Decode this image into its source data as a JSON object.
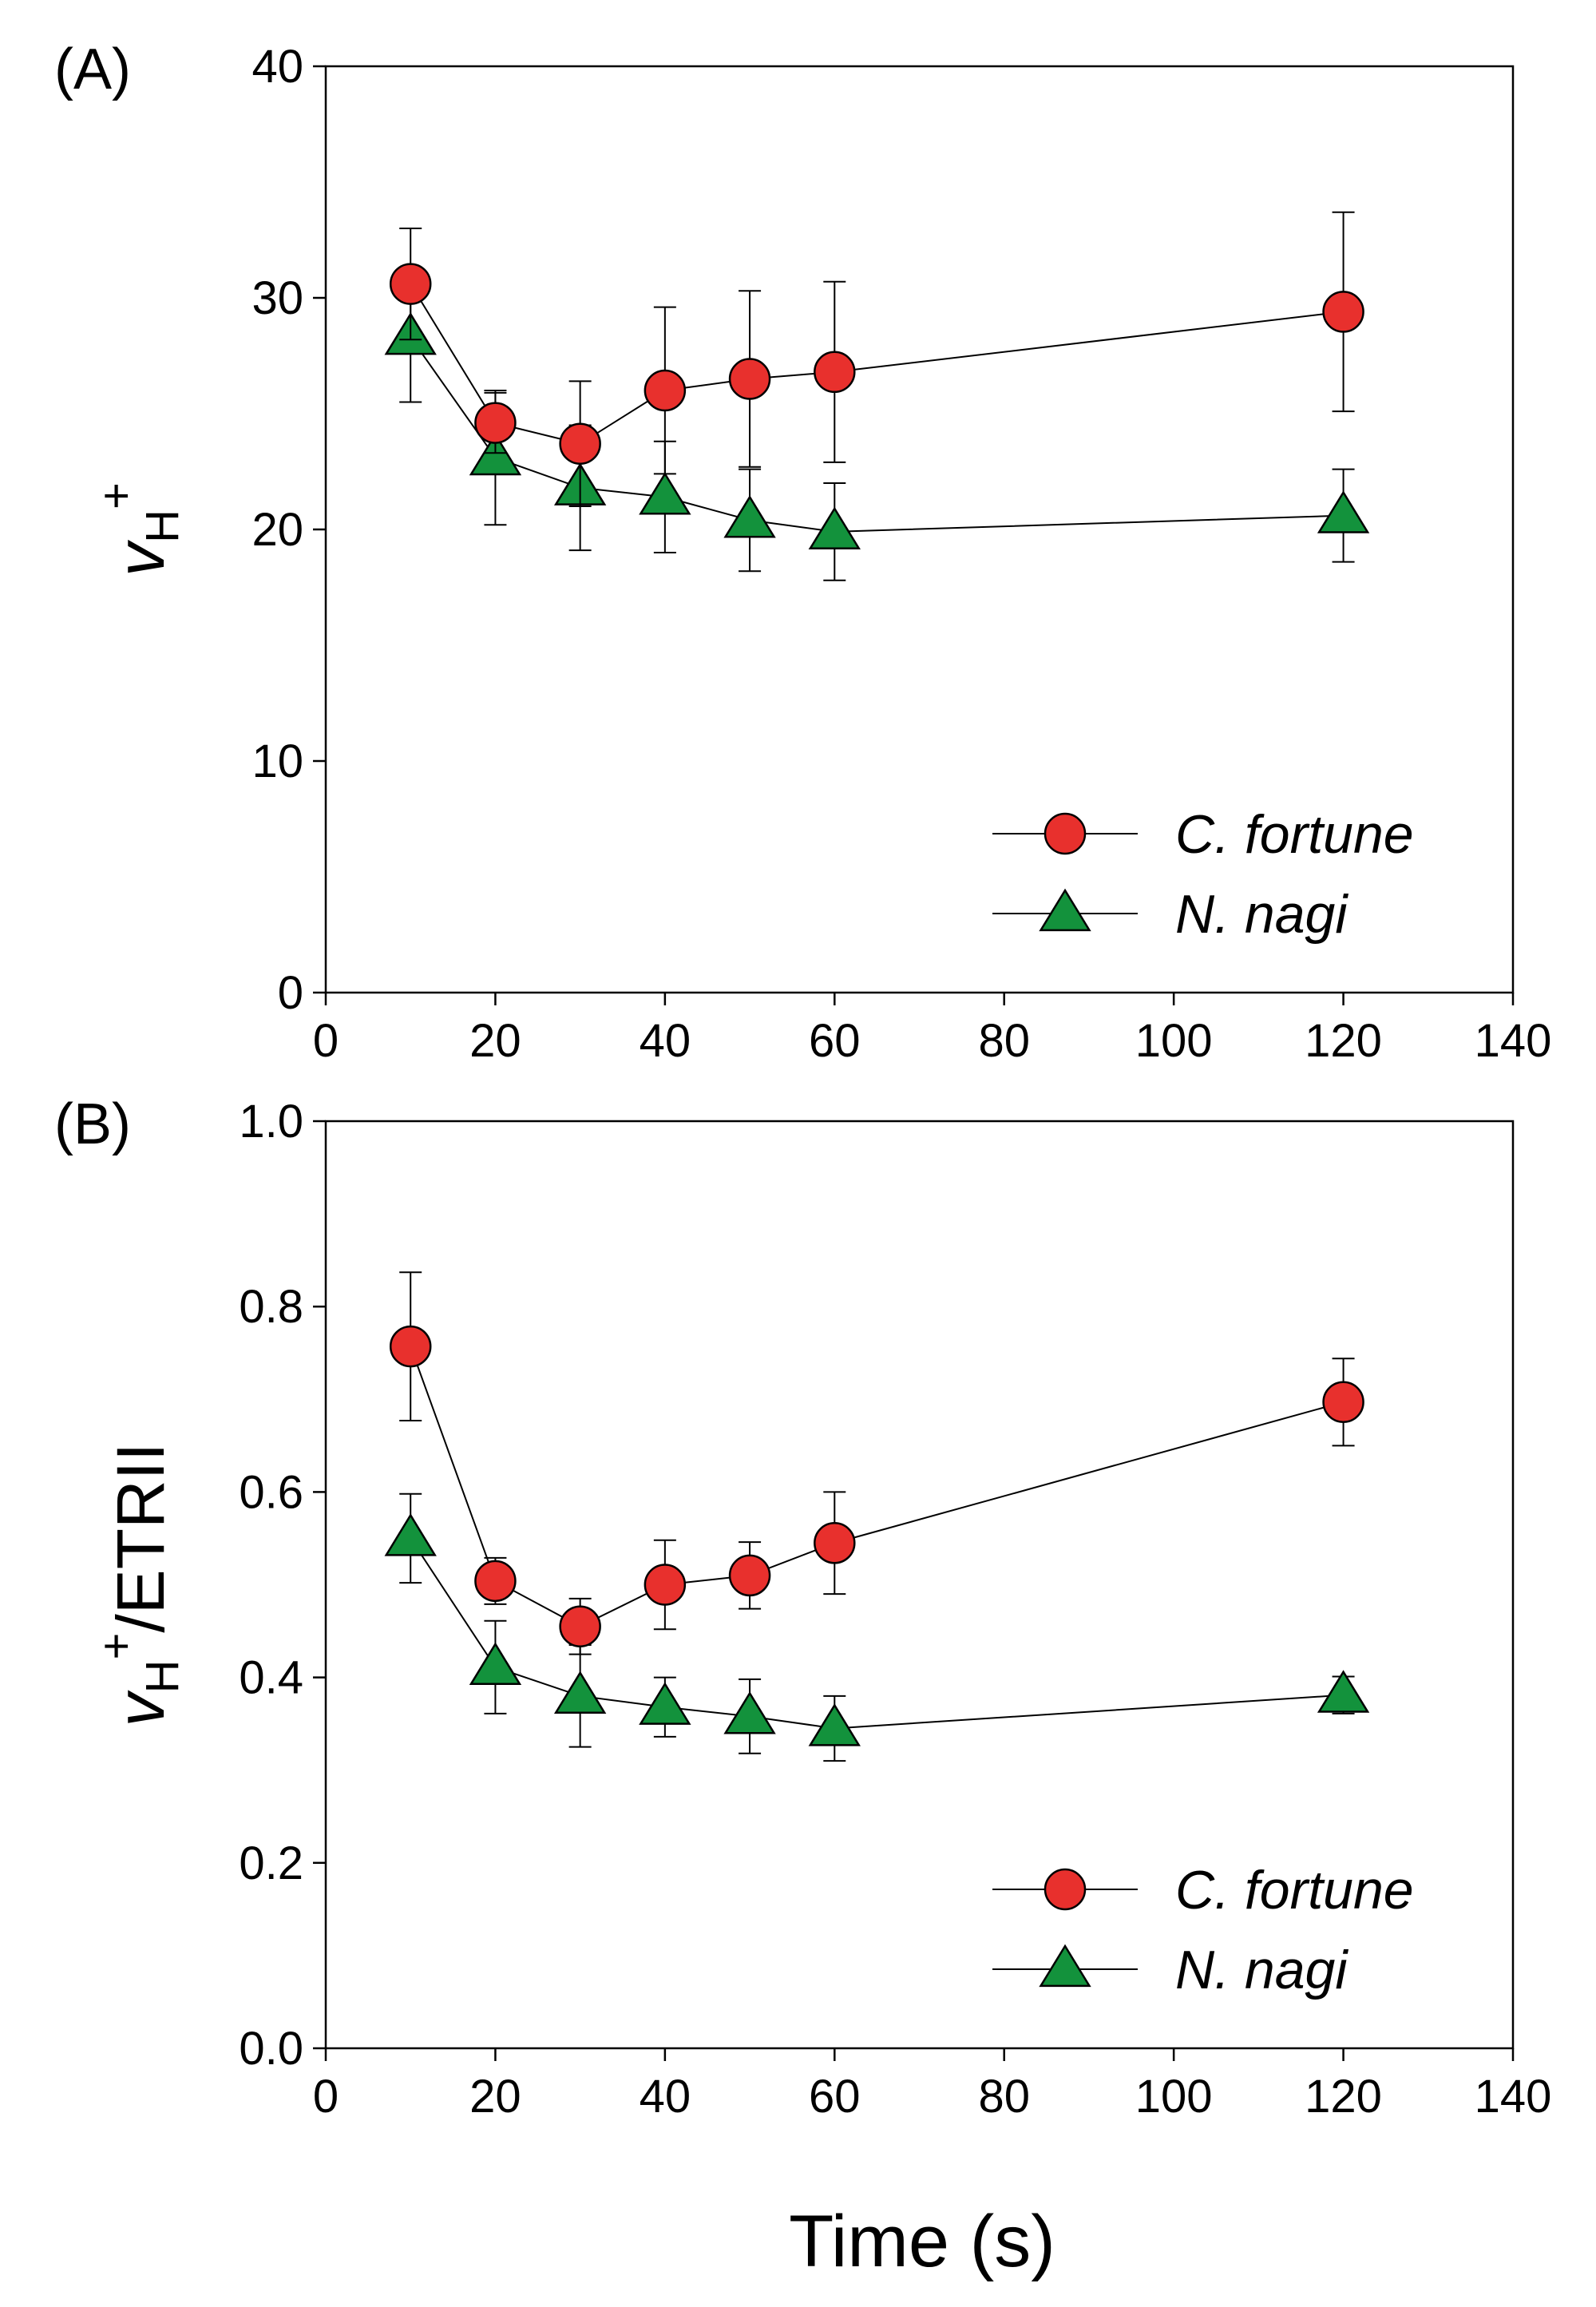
{
  "figure": {
    "xlabel": "Time (s)"
  },
  "chart_data": [
    {
      "type": "line",
      "panel_label": "(A)",
      "ylabel_main": "v",
      "ylabel_sub": "H",
      "ylabel_sup": "+",
      "ylabel_suffix": "",
      "xlim": [
        0,
        140
      ],
      "ylim": [
        0,
        40
      ],
      "xticks": [
        0,
        20,
        40,
        60,
        80,
        100,
        120,
        140
      ],
      "yticks": [
        0,
        10,
        20,
        30,
        40
      ],
      "ytick_labels": [
        "0",
        "10",
        "20",
        "30",
        "40"
      ],
      "x": [
        10,
        20,
        30,
        40,
        50,
        60,
        120
      ],
      "series": [
        {
          "name": "C. fortune",
          "marker": "circle",
          "color": "#e8302d",
          "values": [
            30.6,
            24.6,
            23.7,
            26.0,
            26.5,
            26.8,
            29.4
          ],
          "errors": [
            2.4,
            1.3,
            2.7,
            3.6,
            3.8,
            3.9,
            4.3
          ]
        },
        {
          "name": "N. nagi",
          "marker": "triangle",
          "color": "#13923c",
          "values": [
            28.3,
            23.1,
            21.8,
            21.4,
            20.4,
            19.9,
            20.6
          ],
          "errors": [
            2.8,
            2.9,
            2.7,
            2.4,
            2.2,
            2.1,
            2.0
          ]
        }
      ],
      "legend": {
        "location": "bottom-right",
        "entries": [
          "C. fortune",
          "N. nagi"
        ]
      }
    },
    {
      "type": "line",
      "panel_label": "(B)",
      "ylabel_main": "v",
      "ylabel_sub": "H",
      "ylabel_sup": "+",
      "ylabel_suffix": "/ETRII",
      "xlim": [
        0,
        140
      ],
      "ylim": [
        0,
        1.0
      ],
      "xticks": [
        0,
        20,
        40,
        60,
        80,
        100,
        120,
        140
      ],
      "yticks": [
        0,
        0.2,
        0.4,
        0.6,
        0.8,
        1.0
      ],
      "ytick_labels": [
        "0.0",
        "0.2",
        "0.4",
        "0.6",
        "0.8",
        "1.0"
      ],
      "x": [
        10,
        20,
        30,
        40,
        50,
        60,
        120
      ],
      "series": [
        {
          "name": "C. fortune",
          "marker": "circle",
          "color": "#e8302d",
          "values": [
            0.757,
            0.504,
            0.455,
            0.5,
            0.51,
            0.545,
            0.697
          ],
          "errors": [
            0.08,
            0.025,
            0.03,
            0.048,
            0.036,
            0.055,
            0.047
          ]
        },
        {
          "name": "N. nagi",
          "marker": "triangle",
          "color": "#13923c",
          "values": [
            0.55,
            0.411,
            0.38,
            0.368,
            0.358,
            0.345,
            0.381
          ],
          "errors": [
            0.048,
            0.05,
            0.055,
            0.032,
            0.04,
            0.035,
            0.02
          ]
        }
      ],
      "legend": {
        "location": "bottom-right",
        "entries": [
          "C. fortune",
          "N. nagi"
        ]
      }
    }
  ]
}
